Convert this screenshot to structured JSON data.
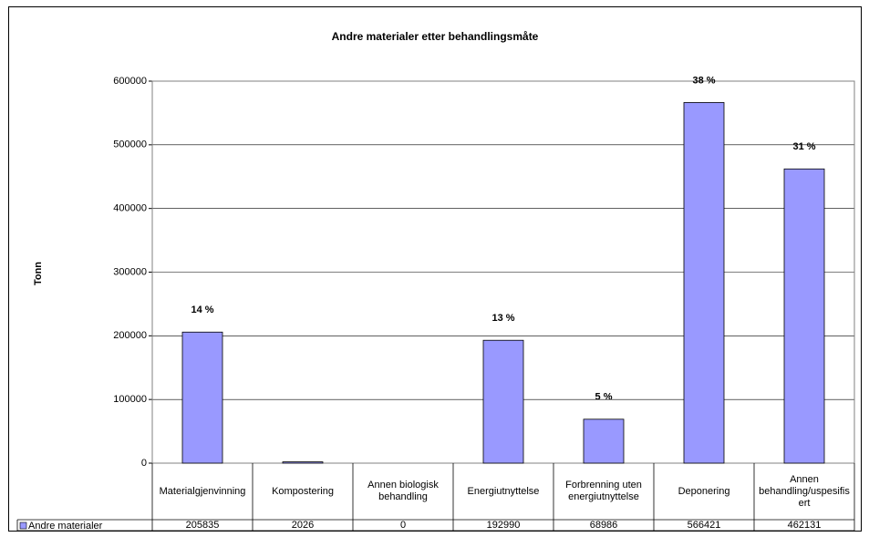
{
  "chart_data": {
    "type": "bar",
    "title": "Andre materialer etter behandlingsmåte",
    "y_label": "Tonn",
    "categories": [
      "Materialgjenvinning",
      "Kompostering",
      "Annen biologisk behandling",
      "Energiutnyttelse",
      "Forbrenning uten energiutnyttelse",
      "Deponering",
      "Annen behandling/uspesifisert"
    ],
    "series": [
      {
        "name": "Andre materialer",
        "color": "#9999ff",
        "values": [
          205835,
          2026,
          0,
          192990,
          68986,
          566421,
          462131
        ],
        "data_labels": [
          "14 %",
          null,
          null,
          "13 %",
          "5 %",
          "38 %",
          "31 %"
        ]
      }
    ],
    "ylim": [
      0,
      600000
    ],
    "yticks": [
      0,
      100000,
      200000,
      300000,
      400000,
      500000,
      600000
    ],
    "grid": true,
    "data_table": true
  }
}
